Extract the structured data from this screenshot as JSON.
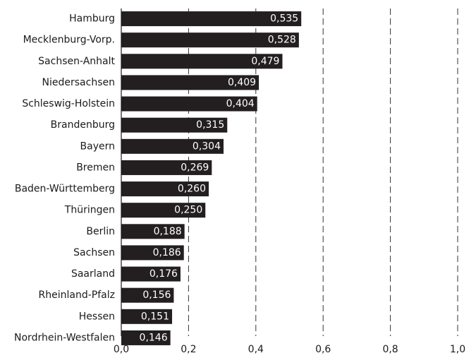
{
  "chart_data": {
    "type": "bar",
    "orientation": "horizontal",
    "title": "",
    "xlabel": "",
    "ylabel": "",
    "categories": [
      "Hamburg",
      "Mecklenburg-Vorp.",
      "Sachsen-Anhalt",
      "Niedersachsen",
      "Schleswig-Holstein",
      "Brandenburg",
      "Bayern",
      "Bremen",
      "Baden-Württemberg",
      "Thüringen",
      "Berlin",
      "Sachsen",
      "Saarland",
      "Rheinland-Pfalz",
      "Hessen",
      "Nordrhein-Westfalen"
    ],
    "values": [
      0.535,
      0.528,
      0.479,
      0.409,
      0.404,
      0.315,
      0.304,
      0.269,
      0.26,
      0.25,
      0.188,
      0.186,
      0.176,
      0.156,
      0.151,
      0.146
    ],
    "value_labels": [
      "0,535",
      "0,528",
      "0,479",
      "0,409",
      "0,404",
      "0,315",
      "0,304",
      "0,269",
      "0,260",
      "0,250",
      "0,188",
      "0,186",
      "0,176",
      "0,156",
      "0,151",
      "0,146"
    ],
    "xlim": [
      0,
      1.0
    ],
    "ticks": [
      0,
      0.2,
      0.4,
      0.6,
      0.8,
      1.0
    ],
    "tick_labels": [
      "0,0",
      "0,2",
      "0,4",
      "0,6",
      "0,8",
      "1,0"
    ],
    "grid": true,
    "legend": "none",
    "bar_color": "#231f20",
    "label_color": "#ffffff"
  }
}
